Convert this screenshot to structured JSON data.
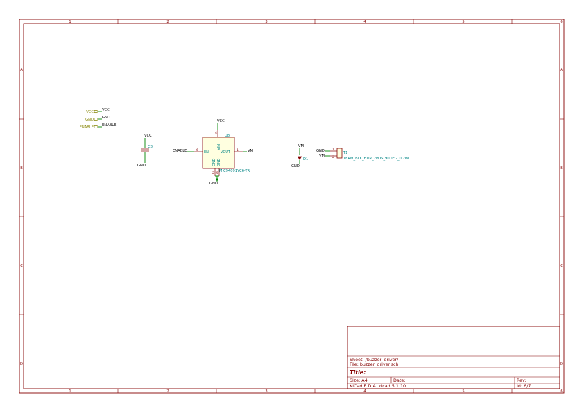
{
  "frame": {
    "columns": [
      "1",
      "2",
      "3",
      "4",
      "5",
      "6"
    ],
    "rows": [
      "A",
      "B",
      "C",
      "D"
    ]
  },
  "title_block": {
    "sheet": "Sheet: /buzzer_driver/",
    "file": "File: buzzer_driver.sch",
    "title": "Title:",
    "size": "Size: A4",
    "date": "Date:",
    "rev": "Rev:",
    "tool": "KiCad E.D.A.  kicad 5.1.10",
    "id": "Id: 6/7"
  },
  "hier_labels": [
    {
      "label": "VCC",
      "net": "VCC"
    },
    {
      "label": "GND",
      "net": "GND"
    },
    {
      "label": "ENABLE",
      "net": "ENABLE"
    }
  ],
  "cap": {
    "ref": "C8",
    "top_net": "VCC",
    "bottom_net": "GND"
  },
  "regulator": {
    "ref": "U8",
    "value": "MIC94091YC6-TR",
    "pins": {
      "vin": "VIN",
      "en": "EN",
      "vout": "VOUT",
      "gnd1": "GND",
      "gnd2": "GND"
    },
    "pin_numbers": {
      "vin": "4",
      "en": "6",
      "vout": "1",
      "gnd1": "2",
      "gnd2": "5"
    },
    "nets": {
      "vin": "VCC",
      "en": "ENABLE",
      "vout": "VM",
      "gnd": "GND"
    }
  },
  "diode": {
    "ref": "D1",
    "top_net": "VM",
    "bottom_net": "GND"
  },
  "connector": {
    "ref": "T1",
    "value": "TERM_BLK_HDR_2POS_90DEG_0.2IN",
    "pin_numbers": [
      "1",
      "2"
    ],
    "nets": [
      "GND",
      "VM"
    ]
  },
  "colors": {
    "frame": "#840000",
    "wire": "#008400",
    "component_text": "#008484",
    "hier_label": "#848400",
    "body_fill": "#ffffe0"
  }
}
